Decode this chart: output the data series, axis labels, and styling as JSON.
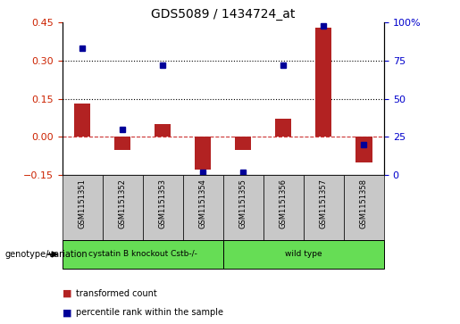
{
  "title": "GDS5089 / 1434724_at",
  "samples": [
    "GSM1151351",
    "GSM1151352",
    "GSM1151353",
    "GSM1151354",
    "GSM1151355",
    "GSM1151356",
    "GSM1151357",
    "GSM1151358"
  ],
  "red_bars": [
    0.13,
    -0.05,
    0.05,
    -0.13,
    -0.05,
    0.07,
    0.43,
    -0.1
  ],
  "blue_dots_pct": [
    83,
    30,
    72,
    2,
    2,
    72,
    98,
    20
  ],
  "ylim_left": [
    -0.15,
    0.45
  ],
  "ylim_right": [
    0,
    100
  ],
  "left_yticks": [
    -0.15,
    0.0,
    0.15,
    0.3,
    0.45
  ],
  "right_yticks": [
    0,
    25,
    50,
    75,
    100
  ],
  "hlines": [
    0.15,
    0.3
  ],
  "bar_color": "#B22222",
  "dot_color": "#000099",
  "zero_line_color": "#CC3333",
  "group1_label": "cystatin B knockout Cstb-/-",
  "group2_label": "wild type",
  "group1_count": 4,
  "group2_count": 4,
  "genotype_label": "genotype/variation",
  "legend1": "transformed count",
  "legend2": "percentile rank within the sample",
  "background_color": "#FFFFFF",
  "plot_bg_color": "#FFFFFF",
  "tick_label_color_left": "#CC2200",
  "tick_label_color_right": "#0000CC",
  "group_bg_color": "#66DD55",
  "sample_bg_color": "#C8C8C8"
}
